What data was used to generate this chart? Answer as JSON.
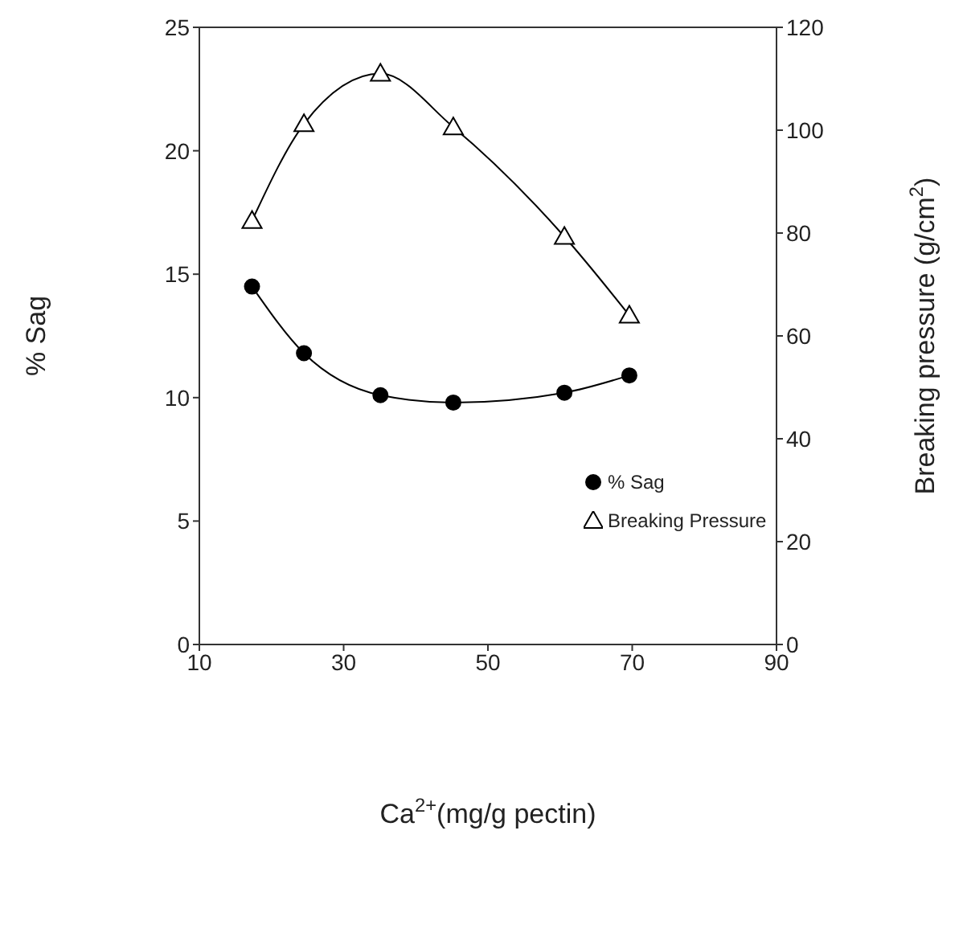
{
  "chart_data": {
    "type": "line",
    "xlabel": "Ca$^{2+}$(mg/g pectin)",
    "ylabel": "% Sag",
    "y2label": "Breaking pressure (g/cm$^{2}$)",
    "xlim": [
      10,
      90
    ],
    "xticks": [
      10,
      30,
      50,
      70,
      90
    ],
    "ylim": [
      0,
      25
    ],
    "yticks": [
      0,
      5,
      10,
      15,
      20,
      25
    ],
    "y2lim": [
      0,
      120
    ],
    "y2ticks": [
      0,
      20,
      40,
      60,
      80,
      100,
      120
    ],
    "legend": "bottom right",
    "line_style": "solid",
    "series": [
      {
        "name": "% Sag",
        "color": "#000000",
        "marker": "circle",
        "x": [
          17.3,
          24.5,
          35.1,
          45.2,
          60.6,
          69.6
        ],
        "values": [
          14.5,
          11.8,
          10.1,
          9.8,
          10.2,
          10.9
        ]
      },
      {
        "name": "Breaking Pressure",
        "color": "#000000",
        "marker": "triangle",
        "axis": "y2",
        "x": [
          17.3,
          24.5,
          35.1,
          45.2,
          60.6,
          69.6
        ],
        "values": [
          82.4,
          101.2,
          111.0,
          100.6,
          79.3,
          64.0
        ]
      }
    ]
  }
}
